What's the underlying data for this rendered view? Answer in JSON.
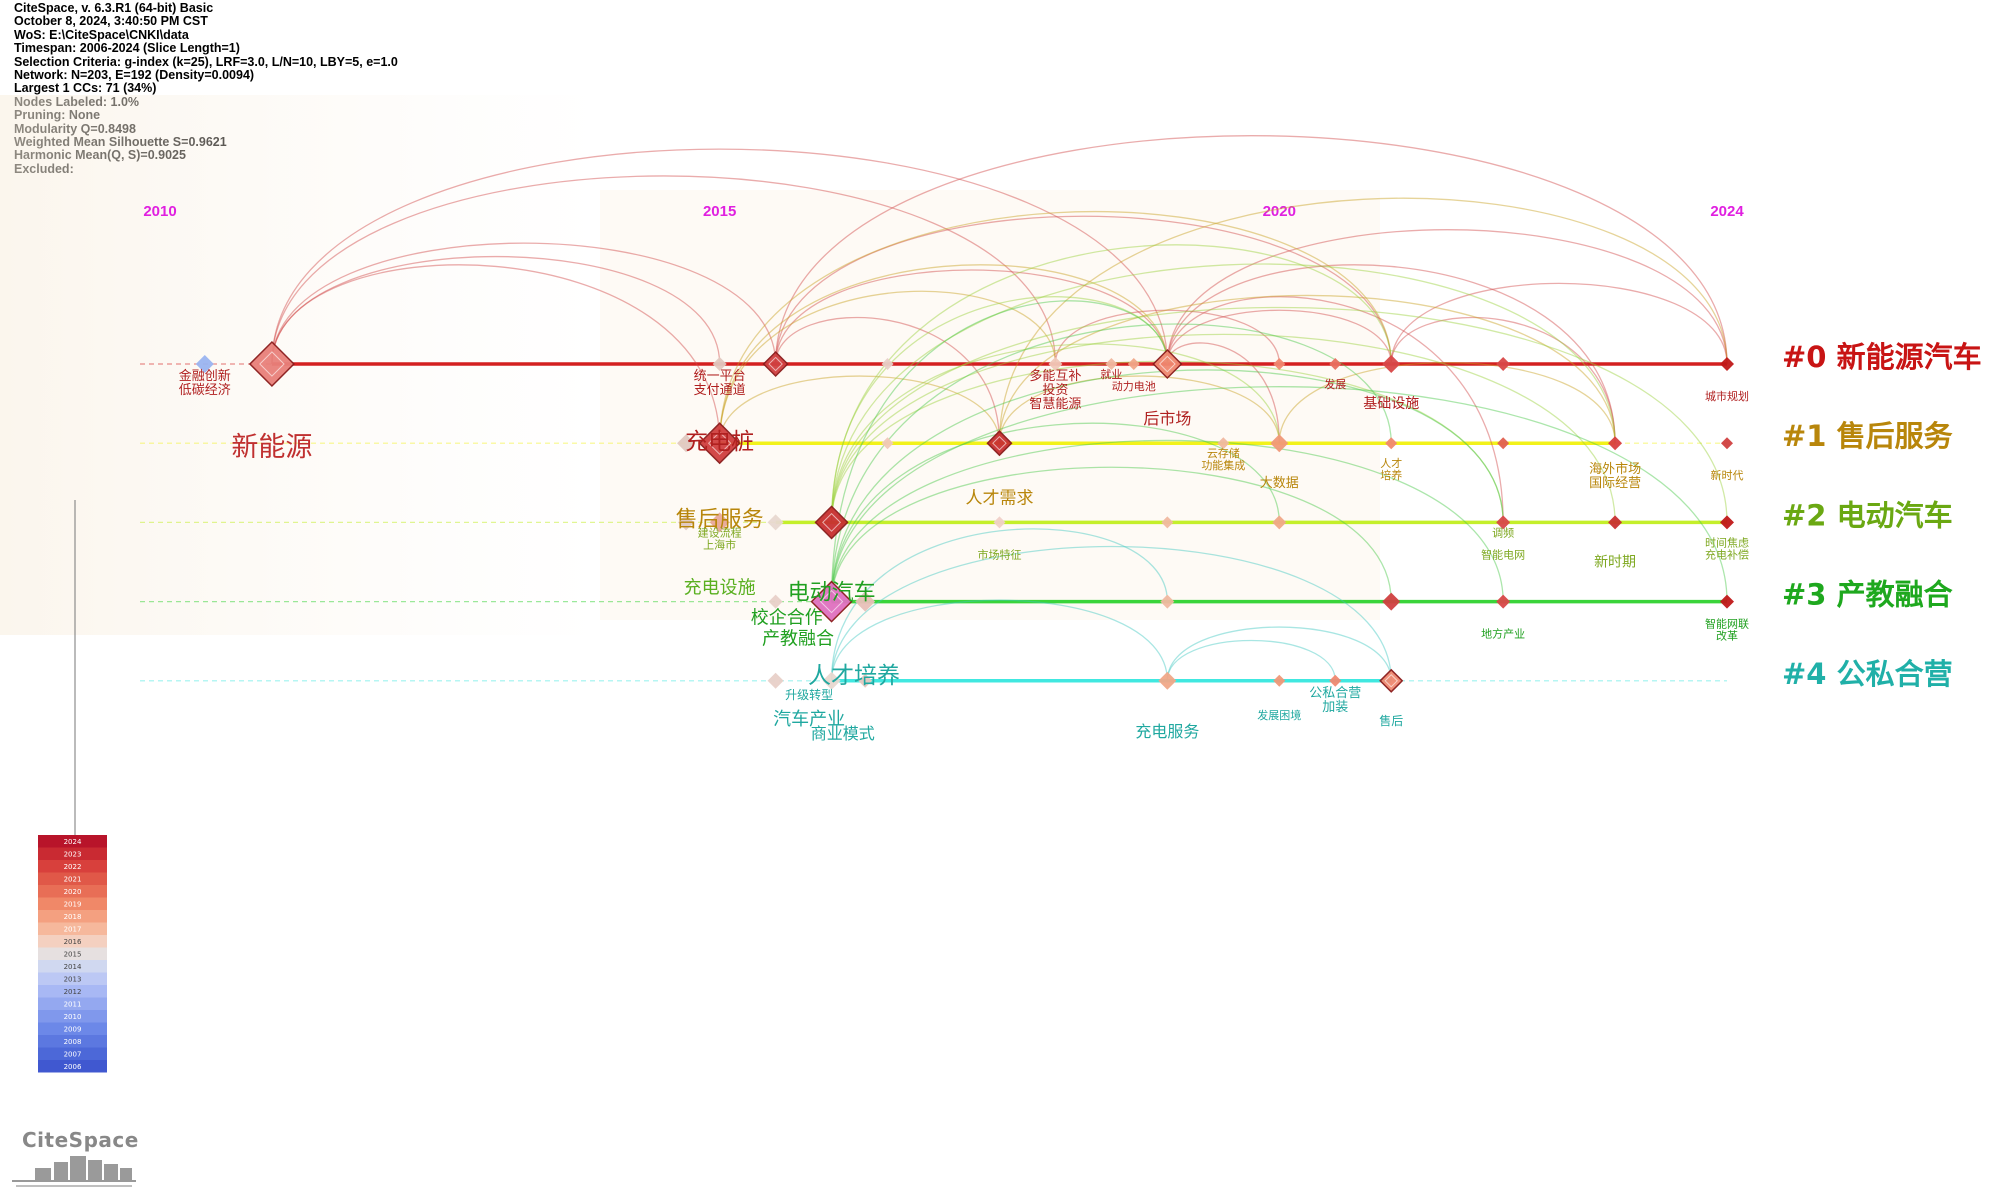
{
  "header": {
    "lines": [
      "CiteSpace, v. 6.3.R1 (64-bit) Basic",
      "October 8, 2024, 3:40:50 PM CST",
      "WoS: E:\\CiteSpace\\CNKI\\data",
      "Timespan: 2006-2024 (Slice Length=1)",
      "Selection Criteria: g-index (k=25), LRF=3.0, L/N=10, LBY=5, e=1.0",
      "Network: N=203, E=192 (Density=0.0094)",
      "Largest 1 CCs: 71 (34%)",
      "Nodes Labeled: 1.0%",
      "Pruning: None",
      "Modularity Q=0.8498",
      "Weighted Mean Silhouette S=0.9621",
      "Harmonic Mean(Q, S)=0.9025",
      "Excluded:"
    ]
  },
  "brand": "CiteSpace",
  "chart_data": {
    "type": "timeline",
    "x_axis": {
      "range": [
        2009,
        2024.5
      ],
      "ticks": [
        2010,
        2015,
        2020,
        2024
      ],
      "color": "#e020e0"
    },
    "clusters": [
      {
        "id": 0,
        "label": "#0 新能源汽车",
        "color": "#c81414",
        "line_color": "#d42020",
        "start": 2011,
        "end": 2024
      },
      {
        "id": 1,
        "label": "#1 售后服务",
        "color": "#b8860b",
        "line_color": "#f2f21a",
        "start": 2015,
        "end": 2023
      },
      {
        "id": 2,
        "label": "#2 电动汽车",
        "color": "#6aa812",
        "line_color": "#c4ef2a",
        "start": 2015.5,
        "end": 2024
      },
      {
        "id": 3,
        "label": "#3 产教融合",
        "color": "#1ea81e",
        "line_color": "#3ad43a",
        "start": 2016,
        "end": 2024
      },
      {
        "id": 4,
        "label": "#4 公私合营",
        "color": "#20b0a8",
        "line_color": "#40e8e0",
        "start": 2016,
        "end": 2021
      }
    ],
    "nodes": [
      {
        "c": 0,
        "year": 2010.4,
        "size": 9,
        "color": "#9ab4f0"
      },
      {
        "c": 0,
        "year": 2011,
        "size": 22,
        "color": "#e8807a"
      },
      {
        "c": 0,
        "year": 2015,
        "size": 7,
        "color": "#e0c8c0"
      },
      {
        "c": 0,
        "year": 2015.5,
        "size": 12,
        "color": "#d04040"
      },
      {
        "c": 0,
        "year": 2016.5,
        "size": 6,
        "color": "#e8d0c8"
      },
      {
        "c": 0,
        "year": 2018,
        "size": 7,
        "color": "#f0c8b8"
      },
      {
        "c": 0,
        "year": 2018.5,
        "size": 6,
        "color": "#f0b8a0"
      },
      {
        "c": 0,
        "year": 2018.7,
        "size": 6,
        "color": "#f0a888"
      },
      {
        "c": 0,
        "year": 2019,
        "size": 14,
        "color": "#f08870"
      },
      {
        "c": 0,
        "year": 2020,
        "size": 6,
        "color": "#f08870"
      },
      {
        "c": 0,
        "year": 2020.5,
        "size": 6,
        "color": "#e87060"
      },
      {
        "c": 0,
        "year": 2021,
        "size": 9,
        "color": "#d84848"
      },
      {
        "c": 0,
        "year": 2022,
        "size": 7,
        "color": "#d84848"
      },
      {
        "c": 0,
        "year": 2024,
        "size": 7,
        "color": "#c01818"
      },
      {
        "c": 1,
        "year": 2014.7,
        "size": 9,
        "color": "#e0c8c0"
      },
      {
        "c": 1,
        "year": 2015,
        "size": 20,
        "color": "#d04040"
      },
      {
        "c": 1,
        "year": 2016.5,
        "size": 6,
        "color": "#f0c8b8"
      },
      {
        "c": 1,
        "year": 2017.5,
        "size": 12,
        "color": "#c83030"
      },
      {
        "c": 1,
        "year": 2019.5,
        "size": 6,
        "color": "#f0b8a0"
      },
      {
        "c": 1,
        "year": 2020,
        "size": 9,
        "color": "#f09878"
      },
      {
        "c": 1,
        "year": 2021,
        "size": 6,
        "color": "#f08870"
      },
      {
        "c": 1,
        "year": 2022,
        "size": 6,
        "color": "#e06050"
      },
      {
        "c": 1,
        "year": 2023,
        "size": 7,
        "color": "#d84040"
      },
      {
        "c": 1,
        "year": 2024,
        "size": 6,
        "color": "#d04040"
      },
      {
        "c": 2,
        "year": 2014.7,
        "size": 8,
        "color": "#e0c8c0"
      },
      {
        "c": 2,
        "year": 2015,
        "size": 10,
        "color": "#e8a898"
      },
      {
        "c": 2,
        "year": 2015.5,
        "size": 8,
        "color": "#e8d8d0"
      },
      {
        "c": 2,
        "year": 2016,
        "size": 16,
        "color": "#c83030"
      },
      {
        "c": 2,
        "year": 2017.5,
        "size": 6,
        "color": "#f0d0c8"
      },
      {
        "c": 2,
        "year": 2019,
        "size": 6,
        "color": "#f0b8a0"
      },
      {
        "c": 2,
        "year": 2020,
        "size": 7,
        "color": "#f0a888"
      },
      {
        "c": 2,
        "year": 2022,
        "size": 7,
        "color": "#d84848"
      },
      {
        "c": 2,
        "year": 2023,
        "size": 7,
        "color": "#c83030"
      },
      {
        "c": 2,
        "year": 2024,
        "size": 7,
        "color": "#c01818"
      },
      {
        "c": 3,
        "year": 2015.5,
        "size": 7,
        "color": "#e8d0c8"
      },
      {
        "c": 3,
        "year": 2016,
        "size": 20,
        "color": "#e070c0"
      },
      {
        "c": 3,
        "year": 2016.3,
        "size": 10,
        "color": "#e8c0b8"
      },
      {
        "c": 3,
        "year": 2019,
        "size": 7,
        "color": "#f0b8a0"
      },
      {
        "c": 3,
        "year": 2021,
        "size": 9,
        "color": "#d04040"
      },
      {
        "c": 3,
        "year": 2022,
        "size": 7,
        "color": "#d84848"
      },
      {
        "c": 3,
        "year": 2024,
        "size": 7,
        "color": "#c01818"
      },
      {
        "c": 4,
        "year": 2015.5,
        "size": 8,
        "color": "#e8d0c8"
      },
      {
        "c": 4,
        "year": 2016,
        "size": 9,
        "color": "#e8d8d0"
      },
      {
        "c": 4,
        "year": 2016.3,
        "size": 7,
        "color": "#e8c8c0"
      },
      {
        "c": 4,
        "year": 2019,
        "size": 9,
        "color": "#f0a888"
      },
      {
        "c": 4,
        "year": 2020,
        "size": 6,
        "color": "#f09878"
      },
      {
        "c": 4,
        "year": 2020.5,
        "size": 6,
        "color": "#f08870"
      },
      {
        "c": 4,
        "year": 2021,
        "size": 11,
        "color": "#f08870"
      }
    ],
    "labels": [
      {
        "c": 0,
        "year": 2010.4,
        "text": "金融创新",
        "size": 13,
        "color": "#b02020",
        "dy": 16
      },
      {
        "c": 0,
        "year": 2010.4,
        "text": "低碳经济",
        "size": 13,
        "color": "#b02020",
        "dy": 30
      },
      {
        "c": 0,
        "year": 2011,
        "text": "新能源",
        "size": 27,
        "color": "#c03030",
        "dy": 92
      },
      {
        "c": 0,
        "year": 2015,
        "text": "统一平台",
        "size": 13,
        "color": "#b02020",
        "dy": 16
      },
      {
        "c": 0,
        "year": 2015,
        "text": "支付通道",
        "size": 13,
        "color": "#b02020",
        "dy": 30
      },
      {
        "c": 0,
        "year": 2018,
        "text": "多能互补",
        "size": 13,
        "color": "#b02020",
        "dy": 16
      },
      {
        "c": 0,
        "year": 2018,
        "text": "投资",
        "size": 13,
        "color": "#b02020",
        "dy": 30
      },
      {
        "c": 0,
        "year": 2018,
        "text": "智慧能源",
        "size": 13,
        "color": "#b02020",
        "dy": 44
      },
      {
        "c": 0,
        "year": 2018.5,
        "text": "就业",
        "size": 11,
        "color": "#b02020",
        "dy": 14
      },
      {
        "c": 0,
        "year": 2018.7,
        "text": "动力电池",
        "size": 11,
        "color": "#b02020",
        "dy": 26
      },
      {
        "c": 0,
        "year": 2020.5,
        "text": "发展",
        "size": 11,
        "color": "#b02020",
        "dy": 24
      },
      {
        "c": 0,
        "year": 2021,
        "text": "基础设施",
        "size": 14,
        "color": "#b02020",
        "dy": 44
      },
      {
        "c": 0,
        "year": 2024,
        "text": "城市规划",
        "size": 11,
        "color": "#b02020",
        "dy": 36
      },
      {
        "c": 1,
        "year": 2015,
        "text": "充电桩",
        "size": 23,
        "color": "#b02020",
        "dy": 6
      },
      {
        "c": 1,
        "year": 2019,
        "text": "后市场",
        "size": 16,
        "color": "#b02020",
        "dy": -19
      },
      {
        "c": 1,
        "year": 2019.5,
        "text": "云存储",
        "size": 11,
        "color": "#b8860b",
        "dy": 14
      },
      {
        "c": 1,
        "year": 2019.5,
        "text": "功能集成",
        "size": 11,
        "color": "#b8860b",
        "dy": 26
      },
      {
        "c": 1,
        "year": 2020,
        "text": "大数据",
        "size": 13,
        "color": "#b8860b",
        "dy": 44
      },
      {
        "c": 1,
        "year": 2021,
        "text": "人才",
        "size": 11,
        "color": "#b8860b",
        "dy": 24
      },
      {
        "c": 1,
        "year": 2021,
        "text": "培养",
        "size": 11,
        "color": "#b8860b",
        "dy": 36
      },
      {
        "c": 1,
        "year": 2023,
        "text": "海外市场",
        "size": 13,
        "color": "#b8860b",
        "dy": 30
      },
      {
        "c": 1,
        "year": 2023,
        "text": "国际经营",
        "size": 13,
        "color": "#b8860b",
        "dy": 44
      },
      {
        "c": 1,
        "year": 2024,
        "text": "新时代",
        "size": 11,
        "color": "#b8860b",
        "dy": 36
      },
      {
        "c": 2,
        "year": 2015,
        "text": "售后服务",
        "size": 22,
        "color": "#b8860b",
        "dy": 4
      },
      {
        "c": 2,
        "year": 2017.5,
        "text": "人才需求",
        "size": 17,
        "color": "#b8860b",
        "dy": -19
      },
      {
        "c": 2,
        "year": 2015,
        "text": "建设流程",
        "size": 11,
        "color": "#7ea820",
        "dy": 14
      },
      {
        "c": 2,
        "year": 2015,
        "text": "上海市",
        "size": 11,
        "color": "#7ea820",
        "dy": 26
      },
      {
        "c": 2,
        "year": 2017.5,
        "text": "市场特征",
        "size": 11,
        "color": "#7ea820",
        "dy": 36
      },
      {
        "c": 2,
        "year": 2022,
        "text": "调频",
        "size": 11,
        "color": "#7ea820",
        "dy": 14
      },
      {
        "c": 2,
        "year": 2022,
        "text": "智能电网",
        "size": 11,
        "color": "#7ea820",
        "dy": 36
      },
      {
        "c": 2,
        "year": 2023,
        "text": "新时期",
        "size": 14,
        "color": "#7ea820",
        "dy": 44
      },
      {
        "c": 2,
        "year": 2024,
        "text": "时间焦虑",
        "size": 11,
        "color": "#7ea820",
        "dy": 24
      },
      {
        "c": 2,
        "year": 2024,
        "text": "充电补偿",
        "size": 11,
        "color": "#7ea820",
        "dy": 36
      },
      {
        "c": 3,
        "year": 2015,
        "text": "充电设施",
        "size": 18,
        "color": "#5ab020",
        "dy": -8
      },
      {
        "c": 3,
        "year": 2016,
        "text": "电动汽车",
        "size": 22,
        "color": "#20a020",
        "dy": -2
      },
      {
        "c": 3,
        "year": 2015.6,
        "text": "校企合作",
        "size": 18,
        "color": "#20a020",
        "dy": 22
      },
      {
        "c": 3,
        "year": 2015.7,
        "text": "产教融合",
        "size": 18,
        "color": "#20a020",
        "dy": 43
      },
      {
        "c": 3,
        "year": 2022,
        "text": "地方产业",
        "size": 11,
        "color": "#20a020",
        "dy": 36
      },
      {
        "c": 3,
        "year": 2024,
        "text": "智能网联",
        "size": 11,
        "color": "#20a020",
        "dy": 26
      },
      {
        "c": 3,
        "year": 2024,
        "text": "改革",
        "size": 11,
        "color": "#20a020",
        "dy": 38
      },
      {
        "c": 4,
        "year": 2016.2,
        "text": "人才培养",
        "size": 23,
        "color": "#20a8a0",
        "dy": 2
      },
      {
        "c": 4,
        "year": 2015.8,
        "text": "升级转型",
        "size": 12,
        "color": "#20a8a0",
        "dy": 18
      },
      {
        "c": 4,
        "year": 2015.8,
        "text": "汽车产业",
        "size": 18,
        "color": "#20a8a0",
        "dy": 44
      },
      {
        "c": 4,
        "year": 2016.1,
        "text": "商业模式",
        "size": 16,
        "color": "#20a8a0",
        "dy": 58
      },
      {
        "c": 4,
        "year": 2019,
        "text": "充电服务",
        "size": 16,
        "color": "#20a8a0",
        "dy": 56
      },
      {
        "c": 4,
        "year": 2020,
        "text": "发展困境",
        "size": 11,
        "color": "#20a8a0",
        "dy": 38
      },
      {
        "c": 4,
        "year": 2020.5,
        "text": "公私合营",
        "size": 13,
        "color": "#20a8a0",
        "dy": 16
      },
      {
        "c": 4,
        "year": 2020.5,
        "text": "加装",
        "size": 13,
        "color": "#20a8a0",
        "dy": 30
      },
      {
        "c": 4,
        "year": 2021,
        "text": "售后",
        "size": 12,
        "color": "#20a8a0",
        "dy": 44
      }
    ],
    "links": [
      [
        0,
        2011,
        0,
        2015
      ],
      [
        0,
        2011,
        0,
        2015.5
      ],
      [
        0,
        2011,
        0,
        2018
      ],
      [
        0,
        2011,
        0,
        2019
      ],
      [
        0,
        2011,
        1,
        2015
      ],
      [
        0,
        2015.5,
        0,
        2019
      ],
      [
        0,
        2015.5,
        0,
        2021
      ],
      [
        0,
        2015.5,
        0,
        2024
      ],
      [
        0,
        2015.5,
        1,
        2017.5
      ],
      [
        0,
        2019,
        0,
        2024
      ],
      [
        0,
        2019,
        0,
        2021
      ],
      [
        0,
        2019,
        1,
        2020
      ],
      [
        0,
        2019,
        1,
        2023
      ],
      [
        0,
        2019,
        2,
        2022
      ],
      [
        0,
        2021,
        0,
        2024
      ],
      [
        0,
        2021,
        1,
        2023
      ],
      [
        0,
        2018,
        0,
        2020
      ],
      [
        1,
        2015,
        0,
        2019
      ],
      [
        1,
        2015,
        0,
        2018
      ],
      [
        1,
        2015,
        1,
        2017.5
      ],
      [
        1,
        2015,
        0,
        2021
      ],
      [
        1,
        2017.5,
        1,
        2020
      ],
      [
        1,
        2017.5,
        1,
        2023
      ],
      [
        1,
        2017.5,
        0,
        2024
      ],
      [
        1,
        2020,
        1,
        2023
      ],
      [
        2,
        2016,
        1,
        2020
      ],
      [
        2,
        2016,
        0,
        2019
      ],
      [
        2,
        2016,
        2,
        2022
      ],
      [
        2,
        2016,
        2,
        2023
      ],
      [
        2,
        2016,
        2,
        2024
      ],
      [
        2,
        2016,
        0,
        2021
      ],
      [
        2,
        2016,
        1,
        2023
      ],
      [
        3,
        2016,
        2,
        2022
      ],
      [
        3,
        2016,
        1,
        2021
      ],
      [
        3,
        2016,
        3,
        2021
      ],
      [
        3,
        2016,
        3,
        2024
      ],
      [
        3,
        2016,
        0,
        2019
      ],
      [
        3,
        2016,
        2,
        2020
      ],
      [
        3,
        2016,
        3,
        2022
      ],
      [
        4,
        2016,
        4,
        2019
      ],
      [
        4,
        2016,
        4,
        2021
      ],
      [
        4,
        2019,
        4,
        2021
      ],
      [
        4,
        2019,
        4,
        2020.5
      ],
      [
        4,
        2016,
        3,
        2019
      ]
    ],
    "legend": {
      "years": [
        "2024",
        "2023",
        "2022",
        "2021",
        "2020",
        "2019",
        "2018",
        "2017",
        "2016",
        "2015",
        "2014",
        "2013",
        "2012",
        "2011",
        "2010",
        "2009",
        "2008",
        "2007",
        "2006"
      ],
      "colors": [
        "#b8142a",
        "#c92a32",
        "#d8403c",
        "#e05848",
        "#e86e56",
        "#f08868",
        "#f4a080",
        "#f6b89c",
        "#f4d0c0",
        "#e6e0e0",
        "#d0d8f0",
        "#bcc8f4",
        "#a8b8f4",
        "#94a8f0",
        "#8098ec",
        "#6c88e8",
        "#5c78e0",
        "#4c68d8",
        "#4058d0"
      ]
    }
  }
}
